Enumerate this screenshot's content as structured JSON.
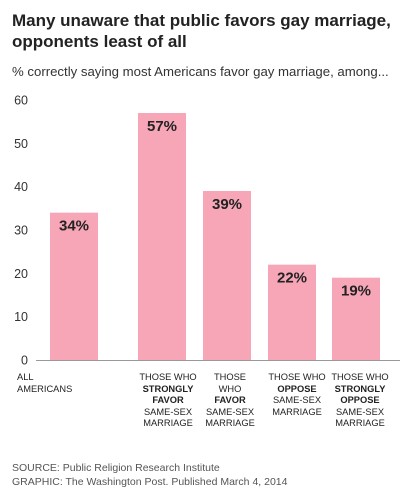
{
  "title": "Many unaware that public favors gay marriage, opponents least of all",
  "subtitle": "% correctly saying most Americans favor gay marriage, among...",
  "source": "SOURCE: Public Religion Research Institute",
  "graphic_credit": "GRAPHIC: The Washington Post. Published March 4, 2014",
  "colors": {
    "bar": "#f7a6b8",
    "axis": "#999999",
    "grid": "#cccccc"
  },
  "chart_data": {
    "type": "bar",
    "title": "Many unaware that public favors gay marriage, opponents least of all",
    "subtitle": "% correctly saying most Americans favor gay marriage, among...",
    "xlabel": "",
    "ylabel": "",
    "ylim": [
      0,
      60
    ],
    "yticks": [
      "0",
      "10",
      "20",
      "30",
      "40",
      "50",
      "60"
    ],
    "grid": false,
    "categories": [
      "All Americans",
      "Those who strongly favor same-sex marriage",
      "Those who favor same-sex marriage",
      "Those who oppose same-sex marriage",
      "Those who strongly oppose same-sex marriage"
    ],
    "category_lines": [
      [
        {
          "t": "ALL",
          "b": false
        },
        {
          "t": "AMERICANS",
          "b": false
        }
      ],
      [
        {
          "t": "THOSE WHO",
          "b": false
        },
        {
          "t": "STRONGLY",
          "b": true
        },
        {
          "t": "FAVOR",
          "b": true
        },
        {
          "t": "SAME-SEX",
          "b": false
        },
        {
          "t": "MARRIAGE",
          "b": false
        }
      ],
      [
        {
          "t": "THOSE WHO",
          "b": false
        },
        {
          "t": "FAVOR",
          "b": true
        },
        {
          "t": "SAME-SEX",
          "b": false
        },
        {
          "t": "MARRIAGE",
          "b": false
        }
      ],
      [
        {
          "t": "THOSE WHO",
          "b": false
        },
        {
          "t": "OPPOSE",
          "b": true
        },
        {
          "t": "SAME-SEX",
          "b": false
        },
        {
          "t": "MARRIAGE",
          "b": false
        }
      ],
      [
        {
          "t": "THOSE WHO",
          "b": false
        },
        {
          "t": "STRONGLY",
          "b": true
        },
        {
          "t": "OPPOSE",
          "b": true
        },
        {
          "t": "SAME-SEX",
          "b": false
        },
        {
          "t": "MARRIAGE",
          "b": false
        }
      ]
    ],
    "values": [
      34,
      57,
      39,
      22,
      19
    ],
    "labels": [
      "34%",
      "57%",
      "39%",
      "22%",
      "19%"
    ]
  }
}
